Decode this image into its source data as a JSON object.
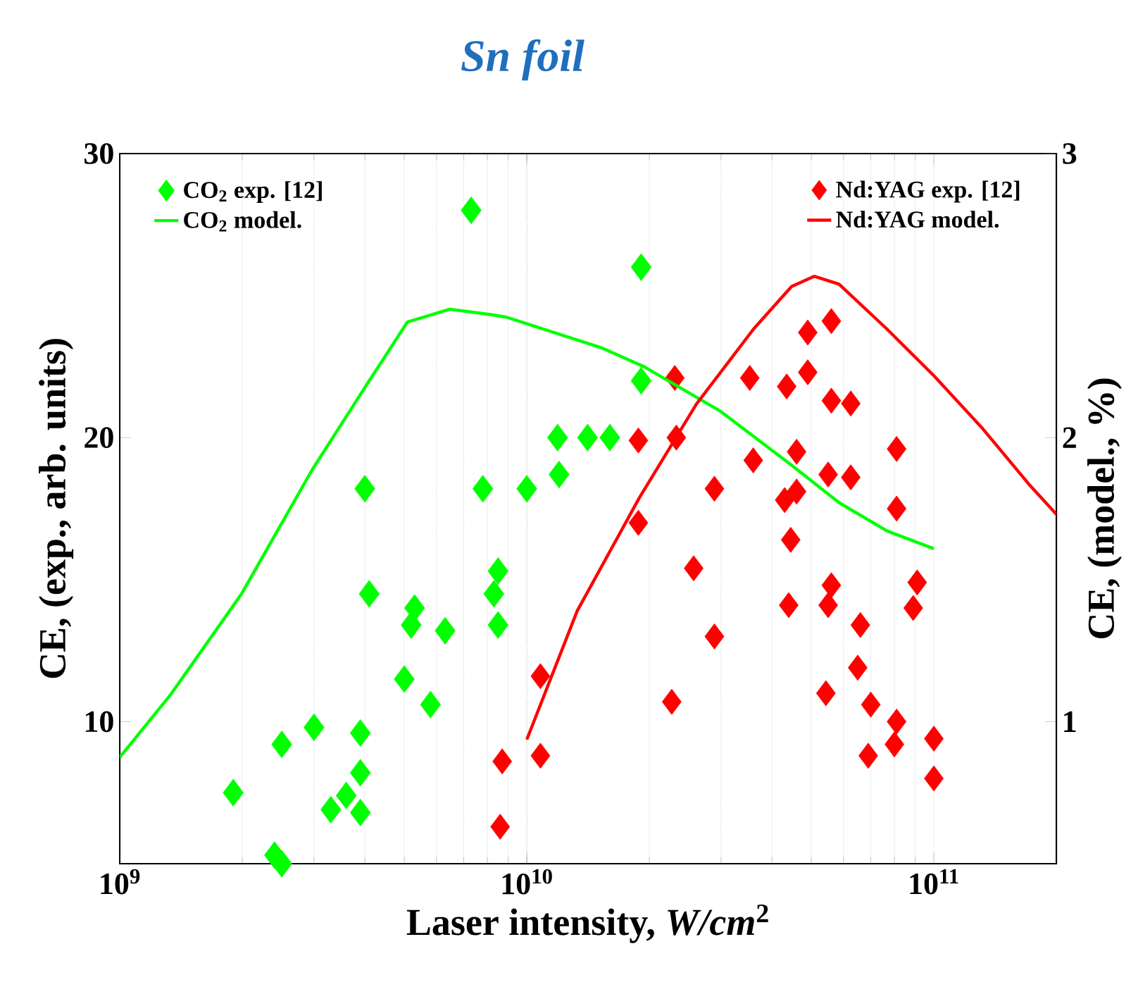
{
  "chart_data": {
    "type": "scatter",
    "title": "Sn foil",
    "xlabel": "Laser intensity, *W/cm*$^{2}$",
    "ylabel": "CE, (exp., arb. units)",
    "y2label": "CE, (model., %)",
    "log": "x",
    "xlim": [
      1000000000.0,
      200000000000.0
    ],
    "xticks": [
      {
        "value": 1000000000.0,
        "label": "10$^{9}$"
      },
      {
        "value": 10000000000.0,
        "label": "10$^{10}$"
      },
      {
        "value": 100000000000.0,
        "label": "10$^{11}$"
      }
    ],
    "ylim": [
      5,
      30
    ],
    "yticks": [
      10,
      20,
      30
    ],
    "y2lim": [
      0.5,
      3
    ],
    "y2ticks": [
      1,
      2,
      3
    ],
    "grid": "x",
    "legend": "top",
    "series": [
      {
        "name": "CO$_{2}$ exp. [12]",
        "marker": "diamond",
        "color": "#00ff00",
        "x": [
          1900000000.0,
          2400000000.0,
          2500000000.0,
          2500000000.0,
          3000000000.0,
          3300000000.0,
          3600000000.0,
          3900000000.0,
          3900000000.0,
          3900000000.0,
          4000000000.0,
          4100000000.0,
          5000000000.0,
          5300000000.0,
          5200000000.0,
          5800000000.0,
          6300000000.0,
          7300000000.0,
          7800000000.0,
          8500000000.0,
          8300000000.0,
          8500000000.0,
          10000000000.0,
          12000000000.0,
          11900000000.0,
          14100000000.0,
          16000000000.0,
          19100000000.0,
          19100000000.0
        ],
        "values": [
          7.5,
          5.3,
          5.0,
          9.2,
          9.8,
          6.9,
          7.4,
          9.6,
          8.2,
          6.8,
          18.2,
          14.5,
          11.5,
          14.0,
          13.4,
          10.6,
          13.2,
          28.0,
          18.2,
          15.3,
          14.5,
          13.4,
          18.2,
          18.7,
          20.0,
          20.0,
          20.0,
          26.0,
          22.0
        ]
      },
      {
        "name": "CO$_{2}$ model.",
        "type": "line",
        "marker": "none",
        "axis": "y2",
        "color": "#00ff00",
        "x": [
          1000000000.0,
          1330000000.0,
          1990000000.0,
          2970000000.0,
          4100000000.0,
          5090000000.0,
          6470000000.0,
          8260000000.0,
          8910000000.0,
          15200000000.0,
          19400000000.0,
          29900000000.0,
          44700000000.0,
          58500000000.0,
          76600000000.0,
          100000000000.0
        ],
        "values": [
          0.875,
          1.093,
          1.449,
          1.887,
          2.2,
          2.407,
          2.452,
          2.432,
          2.424,
          2.317,
          2.25,
          2.093,
          1.903,
          1.771,
          1.672,
          1.609
        ]
      },
      {
        "name": "Nd:YAG exp. [12]",
        "marker": "diamond",
        "color": "#ff0000",
        "x": [
          8700000000.0,
          8600000000.0,
          10800000000.0,
          10800000000.0,
          18800000000.0,
          18800000000.0,
          23100000000.0,
          23300000000.0,
          22700000000.0,
          25700000000.0,
          28900000000.0,
          28900000000.0,
          35300000000.0,
          36000000000.0,
          43500000000.0,
          43000000000.0,
          46000000000.0,
          46000000000.0,
          44500000000.0,
          44000000000.0,
          49000000000.0,
          49000000000.0,
          56000000000.0,
          56000000000.0,
          55000000000.0,
          56000000000.0,
          55000000000.0,
          54300000000.0,
          62500000000.0,
          62500000000.0,
          66000000000.0,
          65000000000.0,
          70000000000.0,
          69000000000.0,
          81000000000.0,
          81000000000.0,
          81000000000.0,
          80000000000.0,
          91000000000.0,
          89000000000.0,
          100000000000.0,
          100000000000.0
        ],
        "values": [
          8.6,
          6.3,
          11.6,
          8.8,
          19.9,
          17.0,
          22.1,
          20.0,
          10.7,
          15.4,
          18.2,
          13.0,
          22.1,
          19.2,
          21.8,
          17.8,
          18.1,
          19.5,
          16.4,
          14.1,
          23.7,
          22.3,
          24.1,
          21.3,
          18.7,
          14.8,
          14.1,
          11.0,
          21.2,
          18.6,
          13.4,
          11.9,
          10.6,
          8.8,
          19.6,
          17.5,
          10.0,
          9.2,
          14.9,
          14.0,
          9.4,
          8.0
        ]
      },
      {
        "name": "Nd:YAG model.",
        "type": "line",
        "marker": "none",
        "axis": "y2",
        "color": "#ff0000",
        "x": [
          10000000000.0,
          13300000000.0,
          18900000000.0,
          26100000000.0,
          36100000000.0,
          44700000000.0,
          50800000000.0,
          58500000000.0,
          76600000000.0,
          100000000000.0,
          131000000000.0,
          171000000000.0,
          200000000000.0
        ],
        "values": [
          0.937,
          1.39,
          1.788,
          2.118,
          2.383,
          2.532,
          2.568,
          2.54,
          2.383,
          2.218,
          2.036,
          1.837,
          1.73
        ]
      }
    ]
  }
}
